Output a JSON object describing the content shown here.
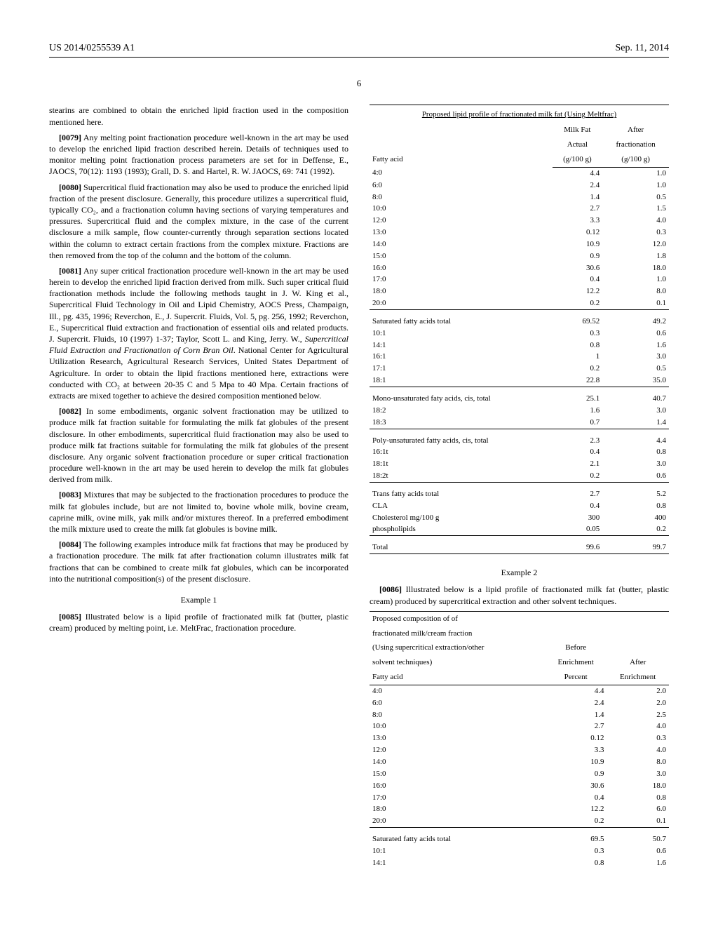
{
  "header": {
    "pubno": "US 2014/0255539 A1",
    "date": "Sep. 11, 2014",
    "page": "6"
  },
  "paragraphs": {
    "p_lead": "stearins are combined to obtain the enriched lipid fraction used in the composition mentioned here.",
    "p0079_num": "[0079]",
    "p0079": "Any melting point fractionation procedure well-known in the art may be used to develop the enriched lipid fraction described herein. Details of techniques used to monitor melting point fractionation process parameters are set for in Deffense, E., JAOCS, 70(12): 1193 (1993); Grall, D. S. and Hartel, R. W. JAOCS, 69: 741 (1992).",
    "p0080_num": "[0080]",
    "p0080": "Supercritical fluid fractionation may also be used to produce the enriched lipid fraction of the present disclosure. Generally, this procedure utilizes a supercritical fluid, typically CO₂, and a fractionation column having sections of varying temperatures and pressures. Supercritical fluid and the complex mixture, in the case of the current disclosure a milk sample, flow counter-currently through separation sections located within the column to extract certain fractions from the complex mixture. Fractions are then removed from the top of the column and the bottom of the column.",
    "p0081_num": "[0081]",
    "p0081_a": "Any super critical fractionation procedure well-known in the art may be used herein to develop the enriched lipid fraction derived from milk. Such super critical fluid fractionation methods include the following methods taught in J. W. King et al., Supercritical Fluid Technology in Oil and Lipid Chemistry, AOCS Press, Champaign, Ill., pg. 435, 1996; Reverchon, E., J. Supercrit. Fluids, Vol. 5, pg. 256, 1992; Reverchon, E., Supercritical fluid extraction and fractionation of essential oils and related products. J. Supercrit. Fluids, 10 (1997) 1-37; Taylor, Scott L. and King, Jerry. W., ",
    "p0081_italic": "Supercritical Fluid Extraction and Fractionation of Corn Bran Oil",
    "p0081_b": ". National Center for Agricultural Utilization Research, Agricultural Research Services, United States Department of Agriculture. In order to obtain the lipid fractions mentioned here, extractions were conducted with CO₂ at between 20-35 C and 5 Mpa to 40 Mpa. Certain fractions of extracts are mixed together to achieve the desired composition mentioned below.",
    "p0082_num": "[0082]",
    "p0082": "In some embodiments, organic solvent fractionation may be utilized to produce milk fat fraction suitable for formulating the milk fat globules of the present disclosure. In other embodiments, supercritical fluid fractionation may also be used to produce milk fat fractions suitable for formulating the milk fat globules of the present disclosure. Any organic solvent fractionation procedure or super critical fractionation procedure well-known in the art may be used herein to develop the milk fat globules derived from milk.",
    "p0083_num": "[0083]",
    "p0083": "Mixtures that may be subjected to the fractionation procedures to produce the milk fat globules include, but are not limited to, bovine whole milk, bovine cream, caprine milk, ovine milk, yak milk and/or mixtures thereof. In a preferred embodiment the milk mixture used to create the milk fat globules is bovine milk.",
    "p0084_num": "[0084]",
    "p0084": "The following examples introduce milk fat fractions that may be produced by a fractionation procedure. The milk fat after fractionation column illustrates milk fat fractions that can be combined to create milk fat globules, which can be incorporated into the nutritional composition(s) of the present disclosure.",
    "ex1": "Example 1",
    "p0085_num": "[0085]",
    "p0085": "Illustrated below is a lipid profile of fractionated milk fat (butter, plastic cream) produced by melting point, i.e. MeltFrac, fractionation procedure.",
    "ex2": "Example 2",
    "p0086_num": "[0086]",
    "p0086": "Illustrated below is a lipid profile of fractionated milk fat (butter, plastic cream) produced by supercritical extraction and other solvent techniques."
  },
  "table1": {
    "title": "Proposed lipid profile of fractionated milk fat (Using Meltfrac)",
    "h_fatty": "Fatty acid",
    "h_actual_a": "Milk Fat",
    "h_actual_b": "Actual",
    "h_actual_c": "(g/100 g)",
    "h_after_a": "After",
    "h_after_b": "fractionation",
    "h_after_c": "(g/100 g)",
    "rows_a": [
      [
        "4:0",
        "4.4",
        "1.0"
      ],
      [
        "6:0",
        "2.4",
        "1.0"
      ],
      [
        "8:0",
        "1.4",
        "0.5"
      ],
      [
        "10:0",
        "2.7",
        "1.5"
      ],
      [
        "12:0",
        "3.3",
        "4.0"
      ],
      [
        "13:0",
        "0.12",
        "0.3"
      ],
      [
        "14:0",
        "10.9",
        "12.0"
      ],
      [
        "15:0",
        "0.9",
        "1.8"
      ],
      [
        "16:0",
        "30.6",
        "18.0"
      ],
      [
        "17:0",
        "0.4",
        "1.0"
      ],
      [
        "18:0",
        "12.2",
        "8.0"
      ],
      [
        "20:0",
        "0.2",
        "0.1"
      ]
    ],
    "sat_label": "Saturated fatty acids total",
    "sat_v1": "69.52",
    "sat_v2": "49.2",
    "rows_b": [
      [
        "10:1",
        "0.3",
        "0.6"
      ],
      [
        "14:1",
        "0.8",
        "1.6"
      ],
      [
        "16:1",
        "1",
        "3.0"
      ],
      [
        "17:1",
        "0.2",
        "0.5"
      ],
      [
        "18:1",
        "22.8",
        "35.0"
      ]
    ],
    "mono_label": "Mono-unsaturated faty acids, cis, total",
    "mono_v1": "25.1",
    "mono_v2": "40.7",
    "rows_c": [
      [
        "18:2",
        "1.6",
        "3.0"
      ],
      [
        "18:3",
        "0.7",
        "1.4"
      ]
    ],
    "poly_label": "Poly-unsaturated fatty acids, cis, total",
    "poly_v1": "2.3",
    "poly_v2": "4.4",
    "rows_d": [
      [
        "16:1t",
        "0.4",
        "0.8"
      ],
      [
        "18:1t",
        "2.1",
        "3.0"
      ],
      [
        "18:2t",
        "0.2",
        "0.6"
      ]
    ],
    "rows_e": [
      [
        "Trans fatty acids total",
        "2.7",
        "5.2"
      ],
      [
        "CLA",
        "0.4",
        "0.8"
      ],
      [
        "Cholesterol mg/100 g",
        "300",
        "400"
      ],
      [
        "phospholipids",
        "0.05",
        "0.2"
      ]
    ],
    "total_label": "Total",
    "total_v1": "99.6",
    "total_v2": "99.7"
  },
  "table2": {
    "h_title_a": "Proposed composition of of",
    "h_title_b": "fractionated milk/cream fraction",
    "h_title_c": "(Using supercritical extraction/other",
    "h_title_d": "solvent techniques)",
    "h_title_e": "Fatty acid",
    "h_before_a": "Before",
    "h_before_b": "Enrichment",
    "h_before_c": "Percent",
    "h_after_a": "After",
    "h_after_b": "Enrichment",
    "rows_a": [
      [
        "4:0",
        "4.4",
        "2.0"
      ],
      [
        "6:0",
        "2.4",
        "2.0"
      ],
      [
        "8:0",
        "1.4",
        "2.5"
      ],
      [
        "10:0",
        "2.7",
        "4.0"
      ],
      [
        "13:0",
        "0.12",
        "0.3"
      ],
      [
        "12:0",
        "3.3",
        "4.0"
      ],
      [
        "14:0",
        "10.9",
        "8.0"
      ],
      [
        "15:0",
        "0.9",
        "3.0"
      ],
      [
        "16:0",
        "30.6",
        "18.0"
      ],
      [
        "17:0",
        "0.4",
        "0.8"
      ],
      [
        "18:0",
        "12.2",
        "6.0"
      ],
      [
        "20:0",
        "0.2",
        "0.1"
      ]
    ],
    "sat_label": "Saturated fatty acids total",
    "sat_v1": "69.5",
    "sat_v2": "50.7",
    "rows_b": [
      [
        "10:1",
        "0.3",
        "0.6"
      ],
      [
        "14:1",
        "0.8",
        "1.6"
      ]
    ]
  }
}
